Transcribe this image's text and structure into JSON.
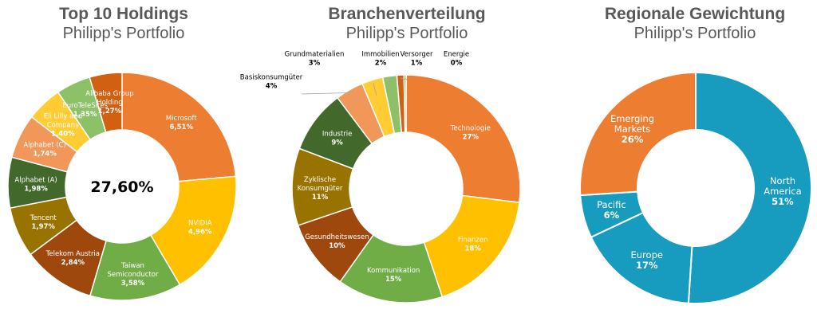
{
  "chart_data": [
    {
      "type": "pie",
      "title": "Top 10 Holdings",
      "subtitle": "Philipp's Portfolio",
      "center_label": "27,60%",
      "slices": [
        {
          "label": "Microsoft",
          "value_label": "6,51%",
          "value": 6.51,
          "color": "#ED7D31"
        },
        {
          "label": "NVIDIA",
          "value_label": "4,96%",
          "value": 4.96,
          "color": "#FFC000"
        },
        {
          "label": "Taiwan Semiconductor",
          "value_label": "3,58%",
          "value": 3.58,
          "color": "#70AD47"
        },
        {
          "label": "Telekom Austria",
          "value_label": "2,84%",
          "value": 2.84,
          "color": "#9E480E"
        },
        {
          "label": "Tencent",
          "value_label": "1,97%",
          "value": 1.97,
          "color": "#997300"
        },
        {
          "label": "Alphabet (A)",
          "value_label": "1,98%",
          "value": 1.98,
          "color": "#43682B"
        },
        {
          "label": "Alphabet (C)",
          "value_label": "1,74%",
          "value": 1.74,
          "color": "#F1975A"
        },
        {
          "label": "Eli Lilly and Company",
          "value_label": "1,40%",
          "value": 1.4,
          "color": "#FFCD33"
        },
        {
          "label": "EuroTeleSites",
          "value_label": "1,35%",
          "value": 1.35,
          "color": "#8CC168"
        },
        {
          "label": "Alibaba Group Holding",
          "value_label": "1,27%",
          "value": 1.27,
          "color": "#D26012"
        }
      ]
    },
    {
      "type": "pie",
      "title": "Branchenverteilung",
      "subtitle": "Philipp's Portfolio",
      "slices": [
        {
          "label": "Technologie",
          "value_label": "27%",
          "value": 27,
          "color": "#ED7D31"
        },
        {
          "label": "Finanzen",
          "value_label": "18%",
          "value": 18,
          "color": "#FFC000"
        },
        {
          "label": "Kommunikation",
          "value_label": "15%",
          "value": 15,
          "color": "#70AD47"
        },
        {
          "label": "Gesundheitswesen",
          "value_label": "10%",
          "value": 10,
          "color": "#9E480E"
        },
        {
          "label": "Zyklische Konsumgüter",
          "value_label": "11%",
          "value": 11,
          "color": "#997300"
        },
        {
          "label": "Industrie",
          "value_label": "9%",
          "value": 9,
          "color": "#43682B"
        },
        {
          "label": "Basiskonsumgüter",
          "value_label": "4%",
          "value": 4,
          "color": "#F1975A"
        },
        {
          "label": "Grundmaterialien",
          "value_label": "3%",
          "value": 3,
          "color": "#FFCD33"
        },
        {
          "label": "Immobilien",
          "value_label": "2%",
          "value": 2,
          "color": "#8CC168"
        },
        {
          "label": "Versorger",
          "value_label": "1%",
          "value": 1,
          "color": "#D26012"
        },
        {
          "label": "Energie",
          "value_label": "0%",
          "value": 0.3,
          "color": "#C9A227"
        }
      ]
    },
    {
      "type": "pie",
      "title": "Regionale Gewichtung",
      "subtitle": "Philipp's Portfolio",
      "slices": [
        {
          "label": "North America",
          "value_label": "51%",
          "value": 51,
          "color": "#179BBF"
        },
        {
          "label": "Europe",
          "value_label": "17%",
          "value": 17,
          "color": "#179BBF"
        },
        {
          "label": "Pacific",
          "value_label": "6%",
          "value": 6,
          "color": "#179BBF"
        },
        {
          "label": "Emerging Markets",
          "value_label": "26%",
          "value": 26,
          "color": "#ED7D31"
        }
      ]
    }
  ]
}
